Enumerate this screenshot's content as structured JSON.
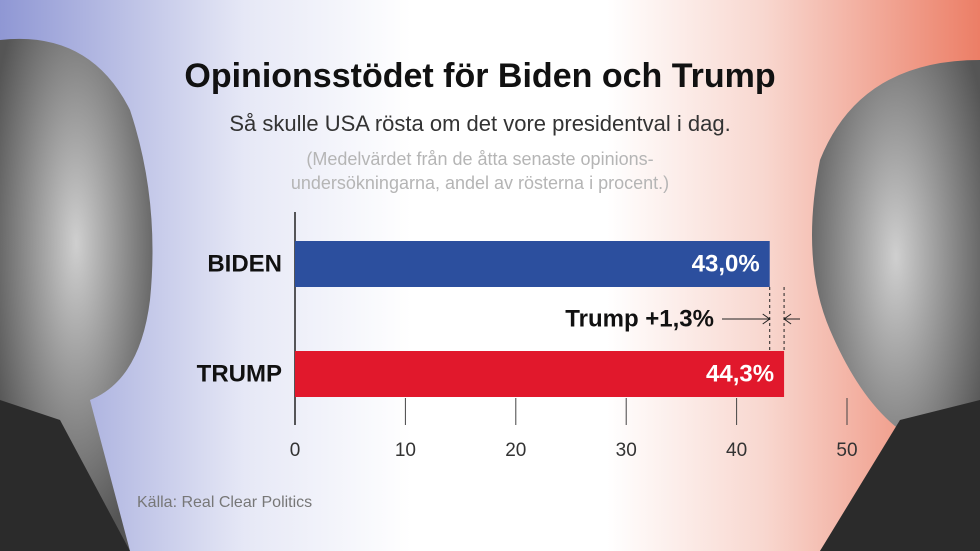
{
  "chart_data": {
    "type": "bar",
    "orientation": "horizontal",
    "title": "Opinionsstödet för Biden och Trump",
    "subtitle": "Så skulle USA rösta om det vore presidentval i dag.",
    "note": [
      "(Medelvärdet från de åtta senaste opinions-",
      "undersökningarna, andel av rösterna i procent.)"
    ],
    "categories": [
      "BIDEN",
      "TRUMP"
    ],
    "values": [
      43.0,
      44.3
    ],
    "value_labels": [
      "43,0%",
      "44,3%"
    ],
    "colors": [
      "#2c4f9e",
      "#e1182c"
    ],
    "annotation": "Trump +1,3%",
    "xlim": [
      0,
      50
    ],
    "xticks": [
      0,
      10,
      20,
      30,
      40,
      50
    ],
    "source": "Källa: Real Clear Politics"
  }
}
